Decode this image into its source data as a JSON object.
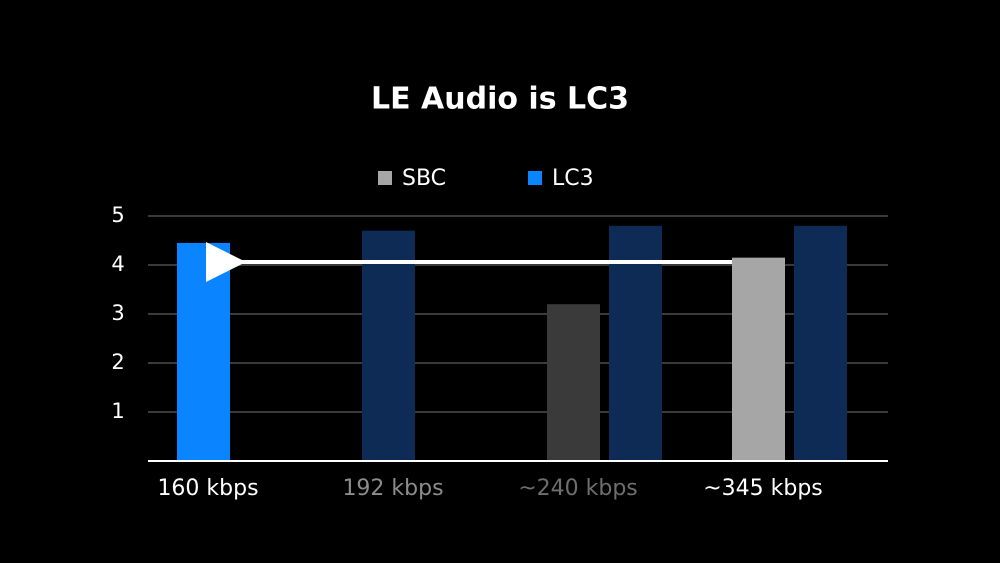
{
  "chart_data": {
    "type": "bar",
    "title": "LE Audio is LC3",
    "categories": [
      "160 kbps",
      "192 kbps",
      "~240 kbps",
      "~345 kbps"
    ],
    "category_colors": [
      "#ffffff",
      "#8c8c8c",
      "#6e6e6e",
      "#ffffff"
    ],
    "series": [
      {
        "name": "SBC",
        "color": "#a6a6a6",
        "bar_colors": [
          "#3a3a3a",
          "#3a3a3a",
          "#3a3a3a",
          "#a6a6a6"
        ],
        "values": [
          null,
          null,
          3.2,
          4.15
        ]
      },
      {
        "name": "LC3",
        "color": "#0a84ff",
        "bar_colors": [
          "#0a84ff",
          "#0d2b55",
          "#0d2b55",
          "#0d2b55"
        ],
        "values": [
          4.45,
          4.7,
          4.8,
          4.8
        ]
      }
    ],
    "ylim": [
      0,
      5
    ],
    "yticks": [
      1,
      2,
      3,
      4,
      5
    ],
    "grid": true,
    "legend": "top"
  }
}
